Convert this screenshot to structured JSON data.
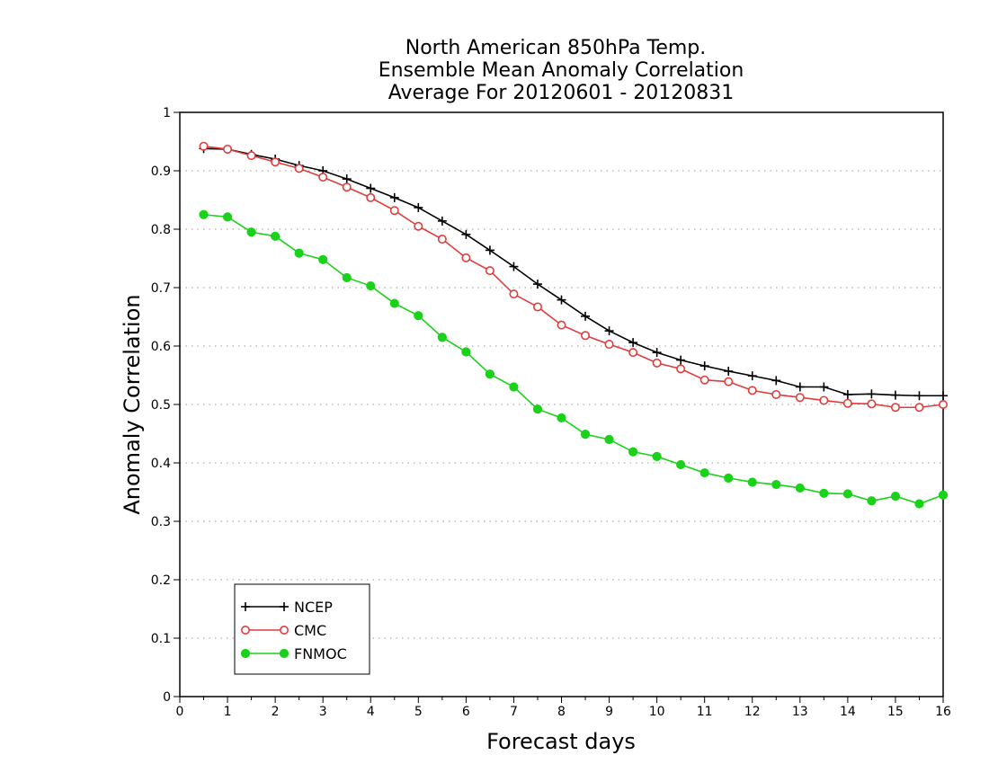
{
  "chart_data": {
    "type": "line",
    "title": [
      "North American 850hPa Temp.",
      "Ensemble Mean Anomaly Correlation",
      "Average For 20120601 - 20120831"
    ],
    "xlabel": "Forecast days",
    "ylabel": "Anomaly Correlation",
    "xlim": [
      0,
      16
    ],
    "ylim": [
      0,
      1
    ],
    "xticks": [
      "0",
      "1",
      "2",
      "3",
      "4",
      "5",
      "6",
      "7",
      "8",
      "9",
      "10",
      "11",
      "12",
      "13",
      "14",
      "15",
      "16"
    ],
    "yticks": [
      "0",
      "0.1",
      "0.2",
      "0.3",
      "0.4",
      "0.5",
      "0.6",
      "0.7",
      "0.8",
      "0.9",
      "1"
    ],
    "grid": "horizontal dotted",
    "legend_position": "bottom-left",
    "x": [
      0.5,
      1,
      1.5,
      2,
      2.5,
      3,
      3.5,
      4,
      4.5,
      5,
      5.5,
      6,
      6.5,
      7,
      7.5,
      8,
      8.5,
      9,
      9.5,
      10,
      10.5,
      11,
      11.5,
      12,
      12.5,
      13,
      13.5,
      14,
      14.5,
      15,
      15.5,
      16
    ],
    "series": [
      {
        "name": "NCEP",
        "color": "#000000",
        "marker": "plus",
        "values": [
          0.938,
          0.937,
          0.928,
          0.92,
          0.909,
          0.9,
          0.886,
          0.87,
          0.854,
          0.837,
          0.814,
          0.791,
          0.764,
          0.736,
          0.706,
          0.679,
          0.651,
          0.626,
          0.606,
          0.589,
          0.576,
          0.566,
          0.557,
          0.549,
          0.541,
          0.53,
          0.53,
          0.517,
          0.518,
          0.516,
          0.515,
          0.515
        ]
      },
      {
        "name": "CMC",
        "color": "#e03c3c",
        "marker": "open-circle",
        "values": [
          0.942,
          0.937,
          0.926,
          0.915,
          0.904,
          0.889,
          0.872,
          0.854,
          0.832,
          0.805,
          0.783,
          0.751,
          0.729,
          0.689,
          0.667,
          0.636,
          0.618,
          0.603,
          0.589,
          0.571,
          0.561,
          0.542,
          0.539,
          0.524,
          0.517,
          0.512,
          0.507,
          0.502,
          0.501,
          0.495,
          0.495,
          0.5
        ]
      },
      {
        "name": "FNMOC",
        "color": "#19d219",
        "marker": "filled-circle",
        "values": [
          0.825,
          0.821,
          0.795,
          0.788,
          0.759,
          0.748,
          0.717,
          0.703,
          0.673,
          0.652,
          0.615,
          0.59,
          0.552,
          0.53,
          0.492,
          0.477,
          0.449,
          0.44,
          0.419,
          0.411,
          0.397,
          0.383,
          0.374,
          0.367,
          0.363,
          0.357,
          0.348,
          0.347,
          0.335,
          0.343,
          0.33,
          0.345
        ]
      }
    ]
  }
}
